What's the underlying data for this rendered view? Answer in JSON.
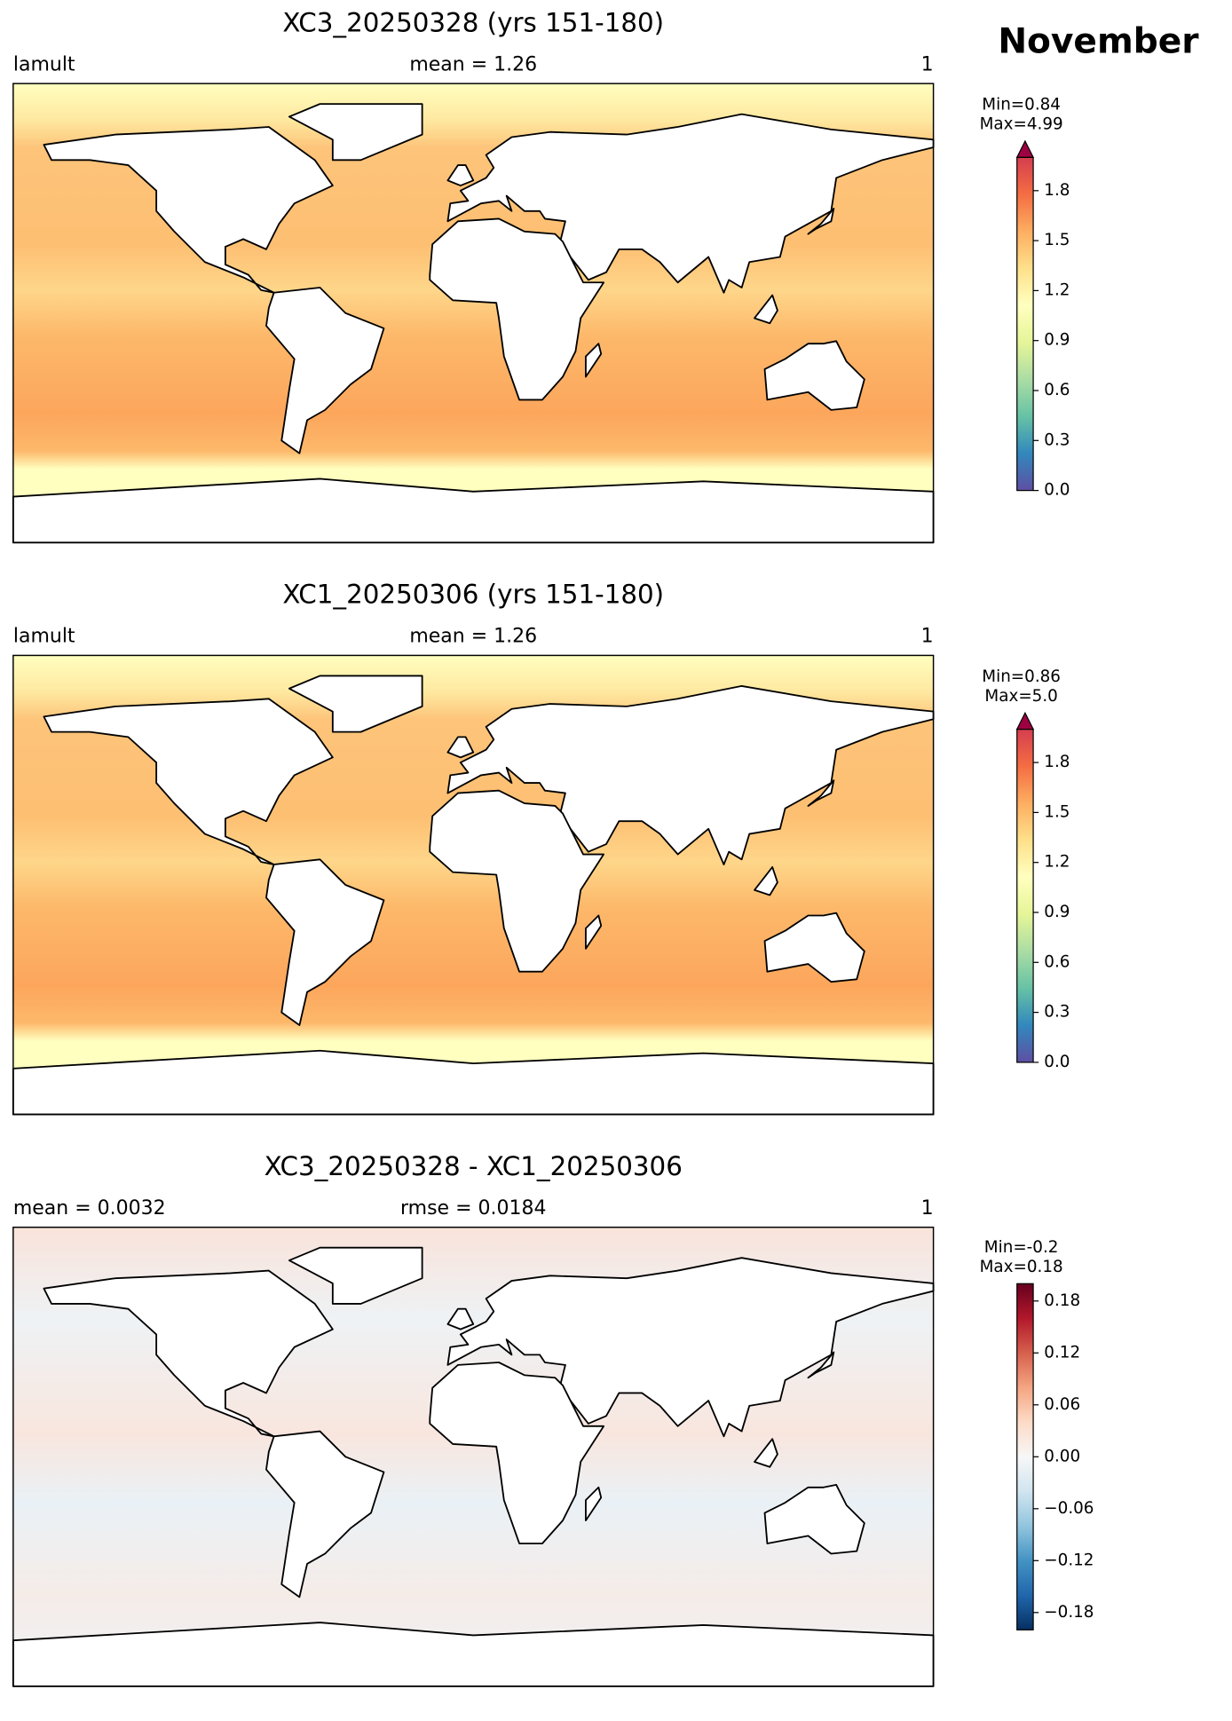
{
  "figure_title": "November",
  "chart_data": [
    {
      "type": "map",
      "title": "XC3_20250328 (yrs 151-180)",
      "left_label": "lamult",
      "center_label": "mean = 1.26",
      "right_label": "1",
      "min_label": "Min=0.84",
      "max_label": "Max=4.99",
      "extend": "max",
      "colors": [
        "#5e4fa2",
        "#3288bd",
        "#66c2a5",
        "#abdda4",
        "#e6f598",
        "#ffffbf",
        "#fee08b",
        "#fdae61",
        "#f46d43",
        "#d53e4f",
        "#9e0142"
      ],
      "ylim": [
        0,
        2.0
      ],
      "yticks": [
        {
          "value": 0,
          "label": "0.0"
        },
        0.3,
        0.6,
        0.9,
        1.2,
        1.5,
        1.8
      ]
    },
    {
      "type": "map",
      "title": "XC1_20250306 (yrs 151-180)",
      "left_label": "lamult",
      "center_label": "mean = 1.26",
      "right_label": "1",
      "min_label": "Min=0.86",
      "max_label": "Max=5.0",
      "extend": "max",
      "colors": [
        "#5e4fa2",
        "#3288bd",
        "#66c2a5",
        "#abdda4",
        "#e6f598",
        "#ffffbf",
        "#fee08b",
        "#fdae61",
        "#f46d43",
        "#d53e4f",
        "#9e0142"
      ],
      "ylim": [
        0,
        2.0
      ],
      "yticks": [
        {
          "value": 0,
          "label": "0.0"
        },
        0.3,
        0.6,
        0.9,
        1.2,
        1.5,
        1.8
      ]
    },
    {
      "type": "map",
      "title": "XC3_20250328 - XC1_20250306",
      "left_label": "mean = 0.0032",
      "center_label": "rmse = 0.0184",
      "right_label": "1",
      "min_label": "Min=-0.2",
      "max_label": "Max=0.18",
      "extend": "neither",
      "colors": [
        "#053061",
        "#2166ac",
        "#4393c3",
        "#92c5de",
        "#d1e5f0",
        "#f7f7f7",
        "#fddbc7",
        "#f4a582",
        "#d6604d",
        "#b2182b",
        "#67001f"
      ],
      "ylim": [
        -0.2,
        0.2
      ],
      "yticks": [
        {
          "value": -0.18,
          "label": "−0.18"
        },
        {
          "value": -0.12,
          "label": "−0.12"
        },
        {
          "value": -0.06,
          "label": "−0.06"
        },
        {
          "value": 0,
          "label": "0.00"
        },
        0.06,
        0.12,
        0.18
      ]
    }
  ]
}
